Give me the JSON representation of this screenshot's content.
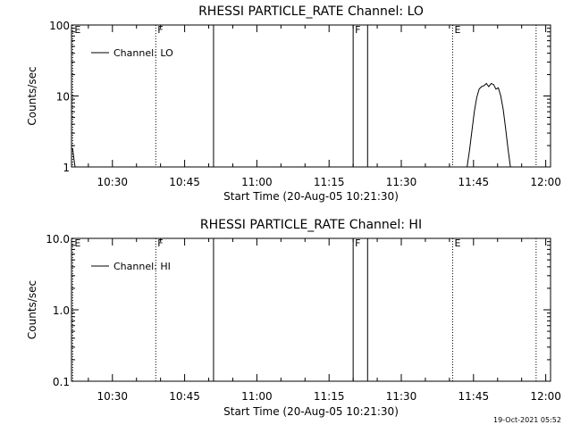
{
  "timestamp": "19-Oct-2021 05:52",
  "chart_data": [
    {
      "type": "line",
      "title": "RHESSI PARTICLE_RATE Channel: LO",
      "xlabel": "Start Time (20-Aug-05 10:21:30)",
      "ylabel": "Counts/sec",
      "yscale": "log",
      "ylim": [
        1,
        100
      ],
      "xlim": [
        "10:21:30",
        "12:01:00"
      ],
      "x_ticks": [
        "10:30",
        "10:45",
        "11:00",
        "11:15",
        "11:30",
        "11:45",
        "12:00"
      ],
      "y_ticks": [
        "1",
        "10",
        "100"
      ],
      "legend": {
        "label": "Channel: LO",
        "position": "top-left"
      },
      "grid": false,
      "series": [
        {
          "name": "Channel: LO",
          "segments": [
            {
              "x": [
                "10:21:30",
                "10:21:45",
                "10:22:00",
                "10:22:15"
              ],
              "y": [
                1.8,
                1.8,
                1.3,
                1.0
              ]
            },
            {
              "x": [
                "11:43:40",
                "11:44:10",
                "11:44:40",
                "11:45:10",
                "11:45:40",
                "11:46:10",
                "11:46:40",
                "11:47:10",
                "11:47:40",
                "11:48:10",
                "11:48:40",
                "11:49:10",
                "11:49:40",
                "11:50:10",
                "11:50:40",
                "11:51:10",
                "11:51:40",
                "11:52:10",
                "11:52:40"
              ],
              "y": [
                1.0,
                1.7,
                3.2,
                6.0,
                9.5,
                12.5,
                13.5,
                14.0,
                15.0,
                13.5,
                15.0,
                14.5,
                12.5,
                13.0,
                10.0,
                6.5,
                3.5,
                1.8,
                1.0
              ]
            }
          ]
        }
      ],
      "annotations": [
        {
          "label": "E",
          "time": "10:21:45",
          "style": "dotted"
        },
        {
          "label": "F",
          "time": "10:39:00",
          "style": "dotted"
        },
        {
          "label": "",
          "time": "10:51:00",
          "style": "solid"
        },
        {
          "label": "F",
          "time": "11:20:00",
          "style": "solid"
        },
        {
          "label": "",
          "time": "11:23:00",
          "style": "solid"
        },
        {
          "label": "E",
          "time": "11:40:40",
          "style": "dotted"
        },
        {
          "label": "",
          "time": "11:58:00",
          "style": "dotted"
        }
      ]
    },
    {
      "type": "line",
      "title": "RHESSI PARTICLE_RATE Channel: HI",
      "xlabel": "Start Time (20-Aug-05 10:21:30)",
      "ylabel": "Counts/sec",
      "yscale": "log",
      "ylim": [
        0.1,
        10
      ],
      "xlim": [
        "10:21:30",
        "12:01:00"
      ],
      "x_ticks": [
        "10:30",
        "10:45",
        "11:00",
        "11:15",
        "11:30",
        "11:45",
        "12:00"
      ],
      "y_ticks": [
        "0.1",
        "1.0",
        "10.0"
      ],
      "legend": {
        "label": "Channel: HI",
        "position": "top-left"
      },
      "grid": false,
      "series": [
        {
          "name": "Channel: HI",
          "segments": []
        }
      ],
      "annotations": [
        {
          "label": "E",
          "time": "10:21:45",
          "style": "dotted"
        },
        {
          "label": "F",
          "time": "10:39:00",
          "style": "dotted"
        },
        {
          "label": "",
          "time": "10:51:00",
          "style": "solid"
        },
        {
          "label": "F",
          "time": "11:20:00",
          "style": "solid"
        },
        {
          "label": "",
          "time": "11:23:00",
          "style": "solid"
        },
        {
          "label": "E",
          "time": "11:40:40",
          "style": "dotted"
        },
        {
          "label": "",
          "time": "11:58:00",
          "style": "dotted"
        }
      ]
    }
  ]
}
